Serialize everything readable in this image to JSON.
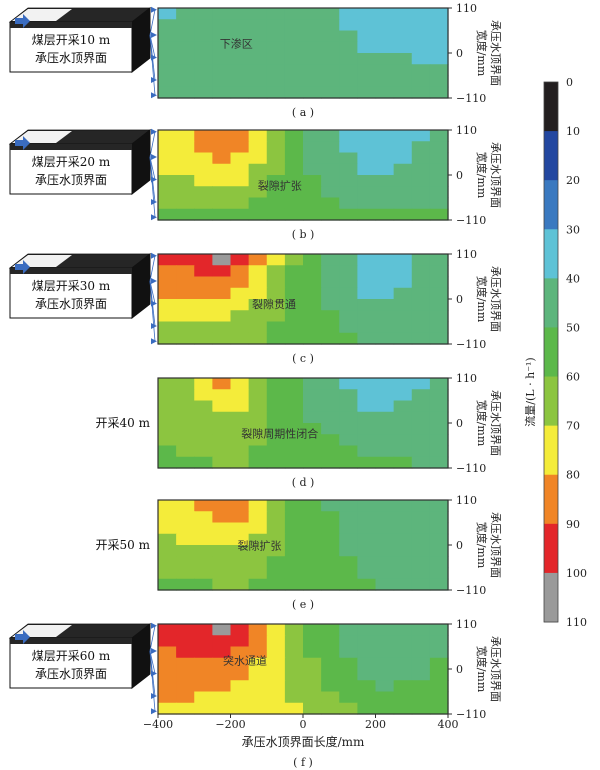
{
  "colors": {
    "scale": [
      "#231f20",
      "#2347a0",
      "#3a79c0",
      "#5ec2d6",
      "#5db57c",
      "#5cb84a",
      "#8cc540",
      "#f4ec3a",
      "#f08526",
      "#e3262a",
      "#9a9a9a"
    ],
    "block_top": "#f2f2f2",
    "block_dark": "#262626",
    "arrow": "#3a6cc0",
    "frame": "#2f2f2f"
  },
  "legend": {
    "title": "流量/(L · h⁻¹)",
    "ticks": [
      "0",
      "10",
      "20",
      "30",
      "40",
      "50",
      "60",
      "70",
      "80",
      "90",
      "100",
      "110"
    ]
  },
  "y_axis": {
    "label_line1": "承压水顶界面",
    "label_line2": "宽度/mm",
    "ticks": [
      "110",
      "0",
      "−110"
    ]
  },
  "x_axis": {
    "label": "承压水顶界面长度/mm",
    "ticks": [
      "−400",
      "−200",
      "0",
      "200",
      "400"
    ]
  },
  "panels": [
    {
      "id": "a",
      "caption": "( a )",
      "block_label1": "煤层开采10 m",
      "block_label2": "承压水顶界面",
      "annotation": "下渗区",
      "side_label": ""
    },
    {
      "id": "b",
      "caption": "( b )",
      "block_label1": "煤层开采20 m",
      "block_label2": "承压水顶界面",
      "annotation": "裂隙扩张",
      "side_label": ""
    },
    {
      "id": "c",
      "caption": "( c )",
      "block_label1": "煤层开采30 m",
      "block_label2": "承压水顶界面",
      "annotation": "裂隙贯通",
      "side_label": ""
    },
    {
      "id": "d",
      "caption": "( d )",
      "block_label1": "",
      "block_label2": "",
      "annotation": "裂隙周期性闭合",
      "side_label": "开采40 m"
    },
    {
      "id": "e",
      "caption": "( e )",
      "block_label1": "",
      "block_label2": "",
      "annotation": "裂隙扩张",
      "side_label": "开采50 m"
    },
    {
      "id": "f",
      "caption": "( f )",
      "block_label1": "煤层开采60 m",
      "block_label2": "承压水顶界面",
      "annotation": "突水通道",
      "side_label": ""
    }
  ],
  "chart_data": {
    "type": "heatmap",
    "xlabel": "承压水顶界面长度/mm",
    "ylabel": "承压水顶界面宽度/mm",
    "xlim": [
      -400,
      400
    ],
    "ylim": [
      -110,
      110
    ],
    "color_scale": {
      "title": "流量/(L · h⁻¹)",
      "min": 0,
      "max": 110,
      "step": 10
    },
    "x": [
      -400,
      -200,
      0,
      200,
      400
    ],
    "y": [
      110,
      0,
      -110
    ],
    "panels": [
      {
        "id": "a",
        "z": [
          [
            38,
            42,
            45,
            33,
            37
          ],
          [
            48,
            42,
            46,
            40,
            38
          ],
          [
            46,
            47,
            50,
            48,
            45
          ]
        ]
      },
      {
        "id": "b",
        "z": [
          [
            68,
            95,
            45,
            33,
            42
          ],
          [
            70,
            75,
            52,
            38,
            46
          ],
          [
            55,
            58,
            52,
            52,
            52
          ]
        ]
      },
      {
        "id": "c",
        "z": [
          [
            90,
            105,
            55,
            32,
            45
          ],
          [
            82,
            78,
            55,
            38,
            47
          ],
          [
            62,
            62,
            55,
            50,
            50
          ]
        ]
      },
      {
        "id": "d",
        "z": [
          [
            62,
            85,
            45,
            35,
            42
          ],
          [
            62,
            66,
            52,
            40,
            46
          ],
          [
            58,
            60,
            58,
            52,
            50
          ]
        ]
      },
      {
        "id": "e",
        "z": [
          [
            72,
            95,
            55,
            40,
            40
          ],
          [
            68,
            70,
            55,
            45,
            48
          ],
          [
            56,
            60,
            58,
            50,
            50
          ]
        ]
      },
      {
        "id": "f",
        "z": [
          [
            90,
            108,
            55,
            40,
            48
          ],
          [
            88,
            85,
            65,
            42,
            52
          ],
          [
            78,
            75,
            70,
            58,
            58
          ]
        ]
      }
    ]
  }
}
